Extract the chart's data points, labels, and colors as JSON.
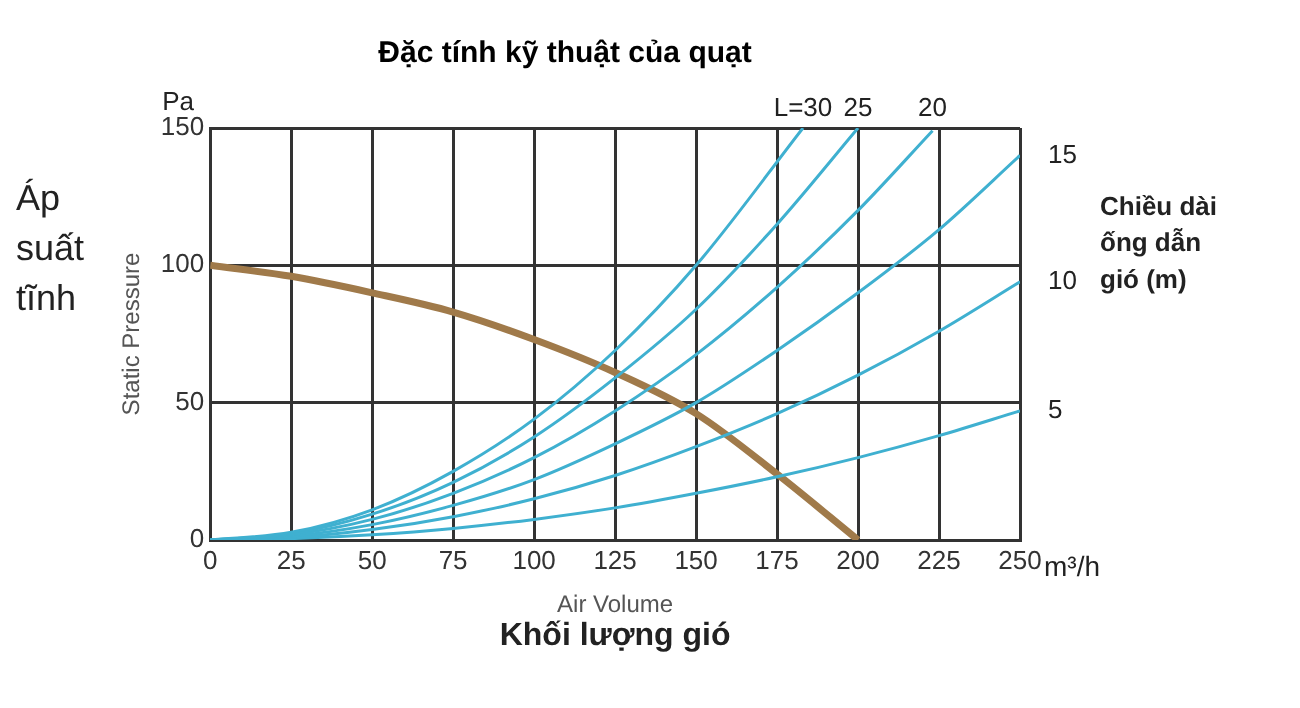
{
  "chart_data": {
    "type": "line",
    "title": "Đặc tính kỹ thuật của quạt",
    "xlabel": "Air Volume",
    "ylabel": "Static Pressure",
    "annotations": [
      "Pa",
      "m³/h",
      "Áp suất tĩnh",
      "Chiều dài ống dẫn gió (m)",
      "Khối lượng gió"
    ],
    "xlim": [
      0,
      250
    ],
    "xticks": [
      0,
      25,
      50,
      75,
      100,
      125,
      150,
      175,
      200,
      225,
      250
    ],
    "ylim": [
      0,
      150
    ],
    "yticks": [
      0,
      50,
      100,
      150
    ],
    "grid": true,
    "legend": false,
    "marker": "none",
    "line_style": "solid",
    "series": [
      {
        "name": "L=30",
        "color": "#3fb0d0",
        "x": [
          0,
          25,
          50,
          75,
          100,
          125,
          150,
          183
        ],
        "values": [
          0,
          2.8,
          11,
          25,
          44,
          69,
          100,
          150
        ]
      },
      {
        "name": "25",
        "color": "#3fb0d0",
        "x": [
          0,
          25,
          50,
          75,
          100,
          125,
          150,
          175,
          200
        ],
        "values": [
          0,
          2.3,
          9.4,
          21,
          37.5,
          59,
          84,
          115,
          150
        ]
      },
      {
        "name": "20",
        "color": "#3fb0d0",
        "x": [
          0,
          25,
          50,
          75,
          100,
          125,
          150,
          175,
          200,
          223
        ],
        "values": [
          0,
          1.9,
          7.5,
          17,
          30,
          47,
          67.5,
          92,
          120,
          149
        ]
      },
      {
        "name": "15",
        "color": "#3fb0d0",
        "x": [
          0,
          25,
          50,
          75,
          100,
          125,
          150,
          175,
          200,
          225,
          250
        ],
        "values": [
          0,
          1.4,
          5.6,
          12.6,
          22,
          35,
          50,
          69,
          90,
          113,
          140
        ]
      },
      {
        "name": "10",
        "color": "#3fb0d0",
        "x": [
          0,
          25,
          50,
          75,
          100,
          125,
          150,
          175,
          200,
          225,
          250
        ],
        "values": [
          0,
          0.9,
          3.8,
          8.5,
          15,
          23.5,
          34,
          46,
          60,
          76,
          94
        ]
      },
      {
        "name": "5",
        "color": "#3fb0d0",
        "x": [
          0,
          25,
          50,
          75,
          100,
          125,
          150,
          175,
          200,
          225,
          250
        ],
        "values": [
          0,
          0.5,
          1.9,
          4.2,
          7.5,
          11.7,
          17,
          23,
          30,
          38,
          47
        ]
      },
      {
        "color": "#a07a4a",
        "x": [
          0,
          25,
          50,
          75,
          100,
          125,
          150,
          175,
          200
        ],
        "values": [
          100,
          96,
          90,
          83,
          73,
          61,
          46,
          24,
          0
        ]
      }
    ]
  }
}
